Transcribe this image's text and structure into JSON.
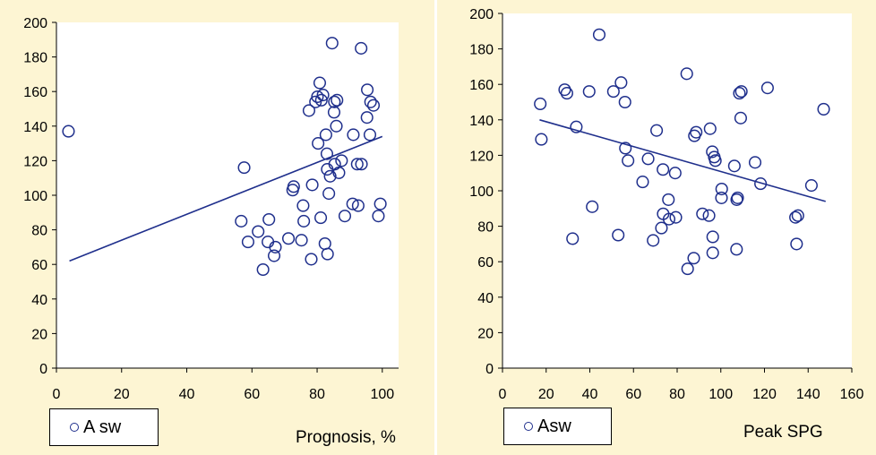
{
  "colors": {
    "panel_bg": "#fdf5d3",
    "plot_bg": "#ffffff",
    "marker": "#1f2f8c",
    "trend": "#1f2f8c"
  },
  "chart_data": [
    {
      "type": "scatter",
      "xlabel": "Prognosis, %",
      "ylabel": "",
      "xlim": [
        0,
        105
      ],
      "ylim": [
        0,
        200
      ],
      "xticks": [
        0,
        20,
        40,
        60,
        80,
        100
      ],
      "yticks": [
        0,
        20,
        40,
        60,
        80,
        100,
        120,
        140,
        160,
        180,
        200
      ],
      "grid": false,
      "legend": "bottom-left",
      "series": [
        {
          "name": "A sw",
          "marker": "open-circle",
          "x": [
            3.7,
            56.7,
            57.6,
            58.8,
            61.9,
            63.4,
            64.9,
            65.2,
            66.8,
            67.2,
            71.2,
            72.5,
            72.8,
            75.2,
            75.7,
            75.9,
            77.5,
            78.2,
            78.5,
            79.5,
            80.1,
            80.3,
            80.8,
            81.1,
            81.3,
            81.8,
            82.4,
            82.7,
            83.0,
            83.1,
            83.2,
            83.6,
            84.0,
            84.6,
            85.2,
            85.3,
            85.4,
            85.9,
            86.1,
            86.7,
            87.5,
            88.5,
            90.9,
            91.1,
            92.3,
            92.6,
            93.5,
            93.6,
            95.3,
            95.4,
            96.2,
            96.4,
            97.3,
            98.8,
            99.4
          ],
          "y": [
            137,
            85,
            116,
            73,
            79,
            57,
            73,
            86,
            65,
            70,
            75,
            103,
            105,
            74,
            94,
            85,
            149,
            63,
            106,
            154,
            157,
            130,
            165,
            87,
            155,
            158,
            72,
            135,
            124,
            115,
            66,
            101,
            111,
            188,
            148,
            154,
            118,
            140,
            155,
            113,
            120,
            88,
            95,
            135,
            118,
            94,
            185,
            118,
            145,
            161,
            135,
            154,
            152,
            88,
            95
          ]
        },
        {
          "name": "",
          "type": "line",
          "x": [
            4,
            100
          ],
          "y": [
            62,
            134
          ]
        }
      ]
    },
    {
      "type": "scatter",
      "xlabel": "Peak SPG",
      "ylabel": "",
      "xlim": [
        0,
        160
      ],
      "ylim": [
        0,
        200
      ],
      "xticks": [
        0,
        20,
        40,
        60,
        80,
        100,
        120,
        140,
        160
      ],
      "yticks": [
        0,
        20,
        40,
        60,
        80,
        100,
        120,
        140,
        160,
        180,
        200
      ],
      "grid": false,
      "legend": "bottom-left",
      "series": [
        {
          "name": "Asw",
          "marker": "open-circle",
          "x": [
            17.3,
            17.8,
            28.5,
            29.5,
            32.1,
            33.8,
            39.7,
            41.1,
            44.3,
            50.8,
            53.0,
            54.3,
            56.1,
            56.3,
            57.5,
            64.2,
            66.7,
            69.0,
            70.6,
            72.8,
            73.5,
            73.6,
            76.0,
            76.3,
            79.1,
            79.4,
            84.4,
            84.8,
            87.6,
            87.9,
            88.7,
            91.6,
            94.6,
            95.1,
            96.1,
            96.3,
            96.3,
            97.0,
            97.5,
            100.3,
            100.4,
            106.2,
            107.2,
            107.3,
            107.7,
            108.5,
            109.1,
            109.4,
            115.7,
            118.2,
            121.4,
            134.2,
            134.7,
            135.3,
            141.5,
            147.1
          ],
          "y": [
            149,
            129,
            157,
            155,
            73,
            136,
            156,
            91,
            188,
            156,
            75,
            161,
            150,
            124,
            117,
            105,
            118,
            72,
            134,
            79,
            112,
            87,
            95,
            84,
            110,
            85,
            166,
            56,
            62,
            131,
            133,
            87,
            86,
            135,
            122,
            74,
            65,
            119,
            117,
            96,
            101,
            114,
            67,
            95,
            96,
            155,
            141,
            156,
            116,
            104,
            158,
            85,
            70,
            86,
            103,
            146
          ]
        },
        {
          "name": "",
          "type": "line",
          "x": [
            17,
            148
          ],
          "y": [
            140,
            94
          ]
        }
      ]
    }
  ]
}
